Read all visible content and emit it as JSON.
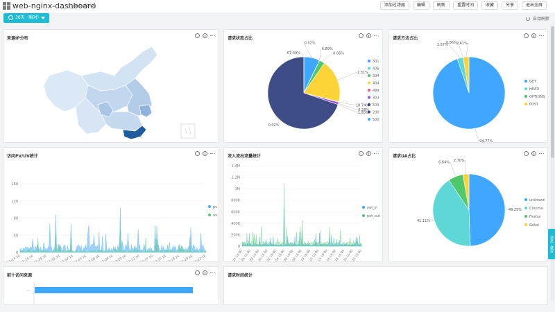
{
  "header": {
    "title": "web-nginx-dashboard",
    "scope_label": "属于",
    "scope_value": "default-log",
    "toolbar": [
      "添加过滤器",
      "编辑",
      "刷新",
      "重置时间",
      "收藏",
      "分享",
      "退出全屏"
    ]
  },
  "time_button": {
    "label": "30天（相对）"
  },
  "auto_refresh": "自动刷新",
  "side_tab": "消息 · 建议",
  "panels": {
    "map": {
      "title": "来源IP分布"
    },
    "status": {
      "title": "请求状态占比",
      "chart_data": {
        "type": "pie",
        "slices": [
          {
            "name": "301",
            "value": 6.89,
            "color": "#3fa7ff"
          },
          {
            "name": "405",
            "value": 0.06,
            "color": "#5ed8d6"
          },
          {
            "name": "304",
            "value": 2.31,
            "color": "#4fc76b"
          },
          {
            "name": "404",
            "value": 18.74,
            "color": "#fdd437"
          },
          {
            "name": "499",
            "value": 0.28,
            "color": "#f05c6e"
          },
          {
            "name": "302",
            "value": 1.0,
            "color": "#9b51e0"
          },
          {
            "name": "503",
            "value": 0.02,
            "color": "#2c3d7f"
          },
          {
            "name": "200",
            "value": 67.49,
            "color": "#3f4d87"
          },
          {
            "name": "500",
            "value": 0.02,
            "color": "#3fa7ff"
          }
        ],
        "labels": [
          "0.02%",
          "6.89%",
          "0.06%",
          "2.31%",
          "18.74%",
          "0.28%",
          "1.00%",
          "0.02%",
          "67.49%"
        ]
      }
    },
    "method": {
      "title": "请求方法占比",
      "chart_data": {
        "type": "pie",
        "slices": [
          {
            "name": "GET",
            "value": 94.77,
            "color": "#3fa7ff"
          },
          {
            "name": "HEAD",
            "value": 2.57,
            "color": "#5ed8d6"
          },
          {
            "name": "OPTIONS",
            "value": 0.06,
            "color": "#4fc76b"
          },
          {
            "name": "POST",
            "value": 2.61,
            "color": "#fdd437"
          }
        ],
        "labels": [
          "94.77%",
          "2.57%",
          "0.06%",
          "2.61%"
        ]
      }
    },
    "pvuv": {
      "title": "访问PV/UV统计",
      "chart_data": {
        "type": "area",
        "ylim": [
          0,
          160
        ],
        "yticks": [
          "0",
          "40",
          "80",
          "120",
          "160"
        ],
        "xticks": [
          "11-24 16",
          "11-26 16",
          "11-28 16",
          "11-30 16",
          "12-02 16",
          "12-04 16",
          "12-06 16",
          "12-08 16",
          "12-10 16",
          "12-12 16",
          "12-14 16",
          "12-16 16",
          "12-18 16",
          "12-20 16",
          "12-22 16"
        ],
        "series": [
          {
            "name": "pv",
            "color": "#3fa7ff"
          },
          {
            "name": "uv",
            "color": "#4fc76b"
          }
        ]
      }
    },
    "traffic": {
      "title": "流入流出流量统计",
      "chart_data": {
        "type": "area",
        "yticks": [
          "0",
          "200K",
          "400K",
          "600K",
          "800K",
          "1M",
          "1.2M",
          "1.4M"
        ],
        "xticks": [
          "11-24 16:00",
          "11-26 16:00",
          "11-28 16:00",
          "11-30 16:00",
          "12-02 16:00",
          "12-04 16:00",
          "12-06 16:00",
          "12-08 16:00",
          "12-10 16:00",
          "12-12 16:00",
          "12-14 16:00",
          "12-16 16:00",
          "12-18 16:00",
          "12-20 16:00",
          "12-22 16:00"
        ],
        "series": [
          {
            "name": "net_in",
            "color": "#3fa7ff"
          },
          {
            "name": "net_out",
            "color": "#4fc76b"
          }
        ]
      }
    },
    "ua": {
      "title": "请求UA占比",
      "chart_data": {
        "type": "pie",
        "slices": [
          {
            "name": "unknown",
            "value": 49.25,
            "color": "#3fa7ff"
          },
          {
            "name": "Chrome",
            "value": 41.11,
            "color": "#5ed8d6"
          },
          {
            "name": "Firefox",
            "value": 6.64,
            "color": "#4fc76b"
          },
          {
            "name": "Safari",
            "value": 2.7,
            "color": "#fdd437"
          }
        ],
        "labels": [
          "49.25%",
          "41.11%",
          "6.64%",
          "2.70%"
        ]
      }
    },
    "top10": {
      "title": "前十访问来源",
      "bar_label": "—"
    },
    "reqtime": {
      "title": "请求时间统计"
    }
  }
}
